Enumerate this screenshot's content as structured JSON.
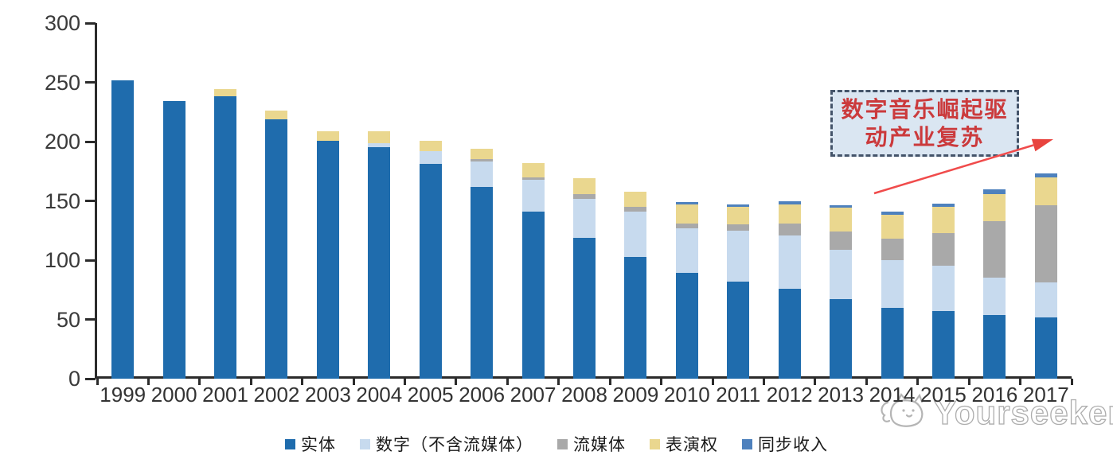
{
  "chart_data": {
    "type": "bar",
    "stacked": true,
    "title": "",
    "xlabel": "",
    "ylabel": "",
    "categories": [
      "1999",
      "2000",
      "2001",
      "2002",
      "2003",
      "2004",
      "2005",
      "2006",
      "2007",
      "2008",
      "2009",
      "2010",
      "2011",
      "2012",
      "2013",
      "2014",
      "2015",
      "2016",
      "2017"
    ],
    "series": [
      {
        "name": "实体",
        "color": "#1f6cad",
        "values": [
          252,
          234,
          238,
          219,
          201,
          195,
          181,
          162,
          141,
          119,
          103,
          89,
          82,
          76,
          67,
          60,
          57,
          54,
          52
        ]
      },
      {
        "name": "数字（不含流媒体）",
        "color": "#c7daee",
        "values": [
          0,
          0,
          0,
          0,
          0,
          4,
          11,
          21,
          27,
          33,
          38,
          38,
          43,
          45,
          42,
          40,
          38,
          31,
          29
        ]
      },
      {
        "name": "流媒体",
        "color": "#a9a9a9",
        "values": [
          0,
          0,
          0,
          0,
          0,
          0,
          0,
          2,
          2,
          4,
          4,
          4,
          5,
          10,
          15,
          18,
          28,
          48,
          65
        ]
      },
      {
        "name": "表演权",
        "color": "#ead78f",
        "values": [
          0,
          0,
          6,
          7,
          8,
          10,
          9,
          9,
          12,
          13,
          13,
          16,
          15,
          16,
          20,
          20,
          22,
          23,
          24
        ]
      },
      {
        "name": "同步收入",
        "color": "#4e81bd",
        "values": [
          0,
          0,
          0,
          0,
          0,
          0,
          0,
          0,
          0,
          0,
          0,
          2,
          2,
          3,
          2,
          3,
          3,
          4,
          3
        ]
      }
    ],
    "ylim": [
      0,
      300
    ],
    "yticks": [
      0,
      50,
      100,
      150,
      200,
      250,
      300
    ],
    "grid": false,
    "legend_position": "bottom"
  },
  "annotation": {
    "line1": "数字音乐崛起驱",
    "line2": "动产业复苏",
    "arrow_color": "#f04b4b"
  },
  "watermark": {
    "text": "Yourseeker"
  }
}
